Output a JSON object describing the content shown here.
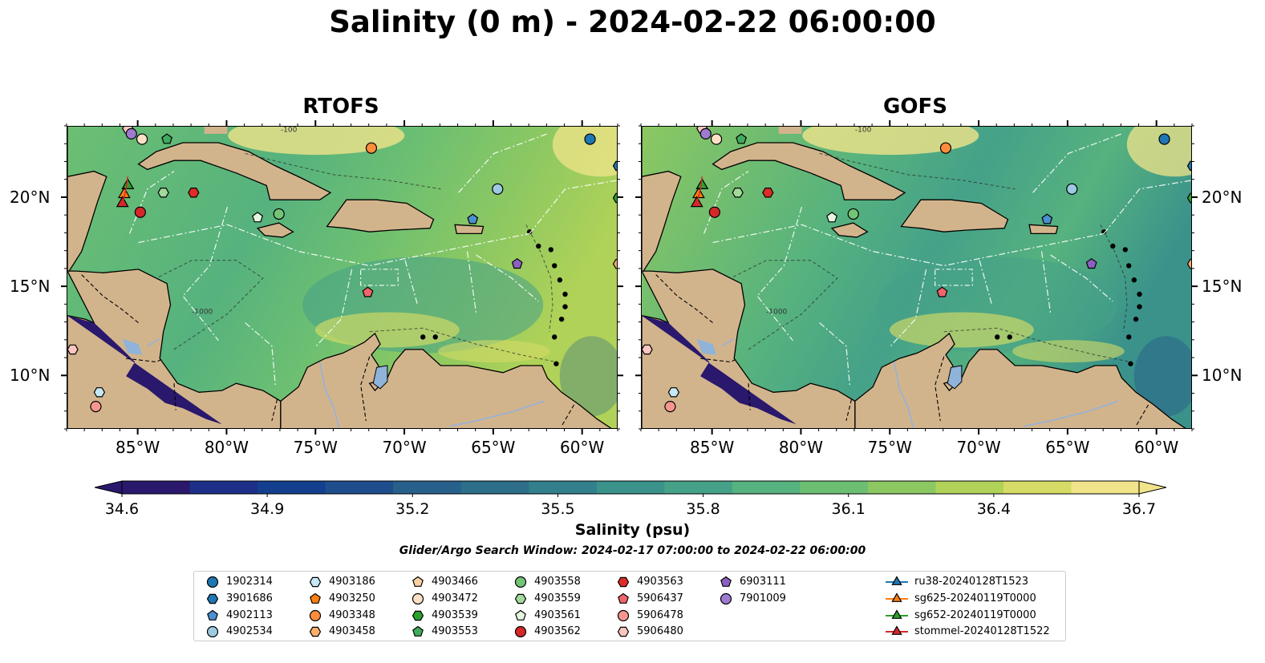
{
  "title": "Salinity (0 m) - 2024-02-22 06:00:00",
  "panels": [
    {
      "title": "RTOFS"
    },
    {
      "title": "GOFS"
    }
  ],
  "map": {
    "lon_ticks": [
      "85°W",
      "80°W",
      "75°W",
      "70°W",
      "65°W",
      "60°W"
    ],
    "lat_ticks": [
      "20°N",
      "15°N",
      "10°N"
    ],
    "contour_labels": [
      "-100",
      "-1000"
    ],
    "colors": {
      "land": "#d2b48c",
      "lakes": "#8fb3d9",
      "boundaries": "#000000",
      "transects": "#ffffff"
    }
  },
  "colorbar": {
    "label": "Salinity (psu)",
    "colormap": "haline",
    "vmin": 34.6,
    "vmax": 36.7,
    "extend": "both",
    "ticks": [
      "34.6",
      "34.9",
      "35.2",
      "35.5",
      "35.8",
      "36.1",
      "36.4",
      "36.7"
    ],
    "colors": [
      "#2a186c",
      "#1e2f8a",
      "#143f8f",
      "#1f4e8c",
      "#27608a",
      "#2d6e8a",
      "#32808b",
      "#3a928b",
      "#45a188",
      "#56b27e",
      "#6cbf72",
      "#8cc862",
      "#b0d258",
      "#d5db65",
      "#f1e48a"
    ]
  },
  "search_window": "Glider/Argo Search Window: 2024-02-17 07:00:00 to 2024-02-22 06:00:00",
  "legend": {
    "items": [
      {
        "label": "1902314",
        "marker": "circle",
        "color": "#1f77b4"
      },
      {
        "label": "3901686",
        "marker": "hexagon",
        "color": "#1f77b4"
      },
      {
        "label": "4902113",
        "marker": "pentagon",
        "color": "#4a90d0"
      },
      {
        "label": "4902534",
        "marker": "circle",
        "color": "#9ecae1"
      },
      {
        "label": "4903186",
        "marker": "hexagon",
        "color": "#c6e8f4"
      },
      {
        "label": "4903250",
        "marker": "pentagon",
        "color": "#ff7f0e"
      },
      {
        "label": "4903348",
        "marker": "circle",
        "color": "#fd8d3c"
      },
      {
        "label": "4903458",
        "marker": "hexagon",
        "color": "#fdae6b"
      },
      {
        "label": "4903466",
        "marker": "pentagon",
        "color": "#fdd0a2"
      },
      {
        "label": "4903472",
        "marker": "circle",
        "color": "#fde0c5"
      },
      {
        "label": "4903539",
        "marker": "hexagon",
        "color": "#2ca02c"
      },
      {
        "label": "4903553",
        "marker": "pentagon",
        "color": "#41ab5d"
      },
      {
        "label": "4903558",
        "marker": "circle",
        "color": "#74c476"
      },
      {
        "label": "4903559",
        "marker": "hexagon",
        "color": "#a1d99b"
      },
      {
        "label": "4903561",
        "marker": "pentagon",
        "color": "#e5f5e0"
      },
      {
        "label": "4903562",
        "marker": "circle",
        "color": "#d62728"
      },
      {
        "label": "4903563",
        "marker": "hexagon",
        "color": "#de2d26"
      },
      {
        "label": "5906437",
        "marker": "pentagon",
        "color": "#f0646c"
      },
      {
        "label": "5906478",
        "marker": "circle",
        "color": "#f7968f"
      },
      {
        "label": "5906480",
        "marker": "hexagon",
        "color": "#fcc5c0"
      },
      {
        "label": "6903111",
        "marker": "pentagon",
        "color": "#8c5fc0"
      },
      {
        "label": "7901009",
        "marker": "circle",
        "color": "#9e7bd0"
      },
      {
        "label": "ru38-20240128T1523",
        "marker": "triangle-line",
        "color": "#1f77b4"
      },
      {
        "label": "sg625-20240119T0000",
        "marker": "triangle-line",
        "color": "#ff7f0e"
      },
      {
        "label": "sg652-20240119T0000",
        "marker": "triangle-line",
        "color": "#2ca02c"
      },
      {
        "label": "stommel-20240128T1522",
        "marker": "triangle-line",
        "color": "#d62728"
      }
    ]
  }
}
